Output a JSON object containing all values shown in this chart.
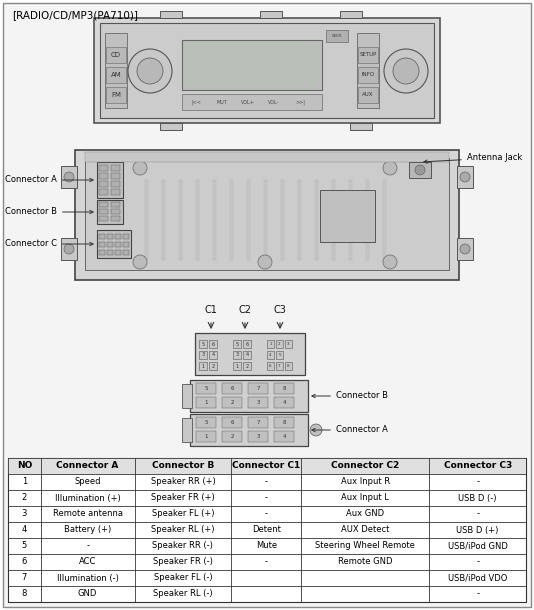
{
  "title": "[RADIO/CD/MP3(PA710)]",
  "bg_color": "#f0f0f0",
  "border_color": "#888888",
  "table_headers": [
    "NO",
    "Connector A",
    "Connector B",
    "Connector C1",
    "Connector C2",
    "Connector C3"
  ],
  "table_data": [
    [
      "1",
      "Speed",
      "Speaker RR (+)",
      "-",
      "Aux Input R",
      "-"
    ],
    [
      "2",
      "Illumination (+)",
      "Speaker FR (+)",
      "-",
      "Aux Input L",
      "USB D (-)"
    ],
    [
      "3",
      "Remote antenna",
      "Speaker FL (+)",
      "-",
      "Aux GND",
      "-"
    ],
    [
      "4",
      "Battery (+)",
      "Speaker RL (+)",
      "Detent",
      "AUX Detect",
      "USB D (+)"
    ],
    [
      "5",
      "-",
      "Speaker RR (-)",
      "Mute",
      "Steering Wheel Remote",
      "USB/iPod GND"
    ],
    [
      "6",
      "ACC",
      "Speaker FR (-)",
      "-",
      "Remote GND",
      "-"
    ],
    [
      "7",
      "Illumination (-)",
      "Speaker FL (-)",
      "",
      "",
      "USB/iPod VDO"
    ],
    [
      "8",
      "GND",
      "Speaker RL (-)",
      "",
      "",
      "-"
    ]
  ],
  "text_color": "#000000",
  "label_fontsize": 6.0,
  "header_fontsize": 6.5,
  "title_fontsize": 7.5
}
